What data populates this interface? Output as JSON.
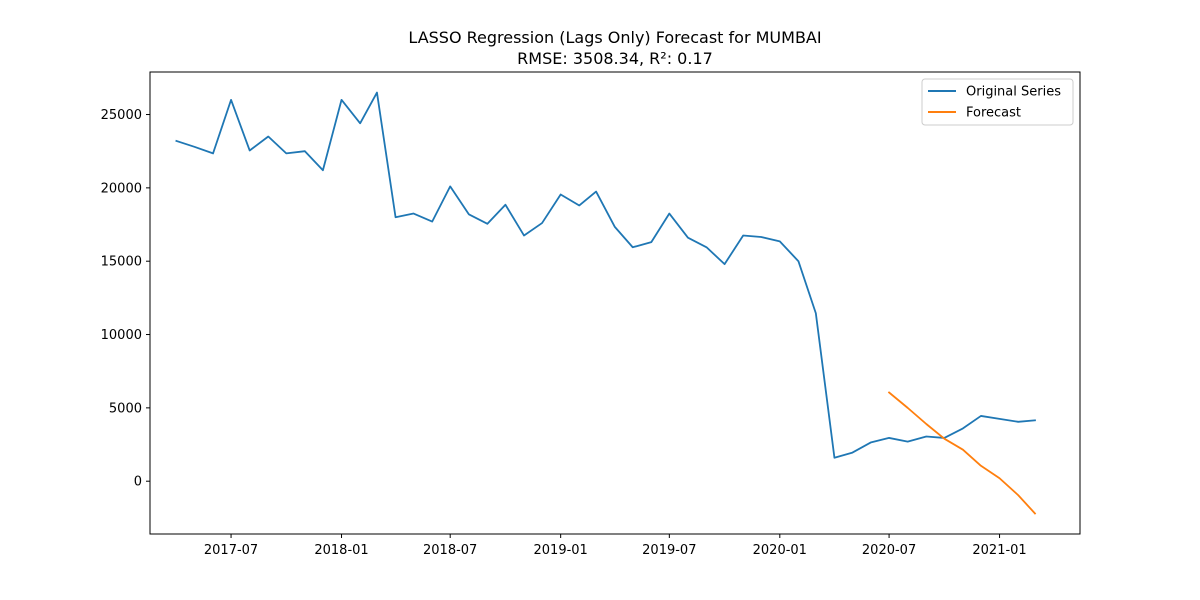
{
  "chart_data": {
    "type": "line",
    "title": "LASSO Regression (Lags Only) Forecast for MUMBAI",
    "subtitle": "RMSE: 3508.34, R²: 0.17",
    "xlabel": "",
    "ylabel": "",
    "x_ticks": [
      "2017-07",
      "2018-01",
      "2018-07",
      "2019-01",
      "2019-07",
      "2020-01",
      "2020-07",
      "2021-01"
    ],
    "y_ticks": [
      "0",
      "5000",
      "10000",
      "15000",
      "20000",
      "25000"
    ],
    "xlim": [
      "2017-02-16",
      "2021-05-15"
    ],
    "ylim": [
      -3600,
      27900
    ],
    "grid": false,
    "legend_position": "top-right",
    "series": [
      {
        "name": "Original Series",
        "color": "#1f77b4",
        "x": [
          "2017-04-01",
          "2017-05-01",
          "2017-06-01",
          "2017-07-01",
          "2017-08-01",
          "2017-09-01",
          "2017-10-01",
          "2017-11-01",
          "2017-12-01",
          "2018-01-01",
          "2018-02-01",
          "2018-03-01",
          "2018-04-01",
          "2018-05-01",
          "2018-06-01",
          "2018-07-01",
          "2018-08-01",
          "2018-09-01",
          "2018-10-01",
          "2018-11-01",
          "2018-12-01",
          "2019-01-01",
          "2019-02-01",
          "2019-03-01",
          "2019-04-01",
          "2019-05-01",
          "2019-06-01",
          "2019-07-01",
          "2019-08-01",
          "2019-09-01",
          "2019-10-01",
          "2019-11-01",
          "2019-12-01",
          "2020-01-01",
          "2020-02-01",
          "2020-03-01",
          "2020-04-01",
          "2020-05-01",
          "2020-06-01",
          "2020-07-01",
          "2020-08-01",
          "2020-09-01",
          "2020-10-01",
          "2020-11-01",
          "2020-12-01",
          "2021-01-01",
          "2021-02-01",
          "2021-03-01"
        ],
        "y": [
          23200,
          22800,
          22350,
          26000,
          22550,
          23500,
          22350,
          22500,
          21200,
          26000,
          24400,
          26500,
          18000,
          18250,
          17700,
          20100,
          18200,
          17550,
          18850,
          16750,
          17600,
          19550,
          18800,
          19750,
          17350,
          15950,
          16300,
          18250,
          16600,
          15950,
          14800,
          16750,
          16650,
          16350,
          15000,
          11450,
          1600,
          1950,
          2650,
          2950,
          2700,
          3050,
          2950,
          3600,
          4450,
          4250,
          4050,
          4150
        ]
      },
      {
        "name": "Forecast",
        "color": "#ff7f0e",
        "x": [
          "2020-07-01",
          "2020-08-01",
          "2020-09-01",
          "2020-10-01",
          "2020-11-01",
          "2020-12-01",
          "2021-01-01",
          "2021-02-01",
          "2021-03-01"
        ],
        "y": [
          6050,
          5000,
          3900,
          2900,
          2150,
          1050,
          200,
          -950,
          -2200
        ]
      }
    ]
  }
}
